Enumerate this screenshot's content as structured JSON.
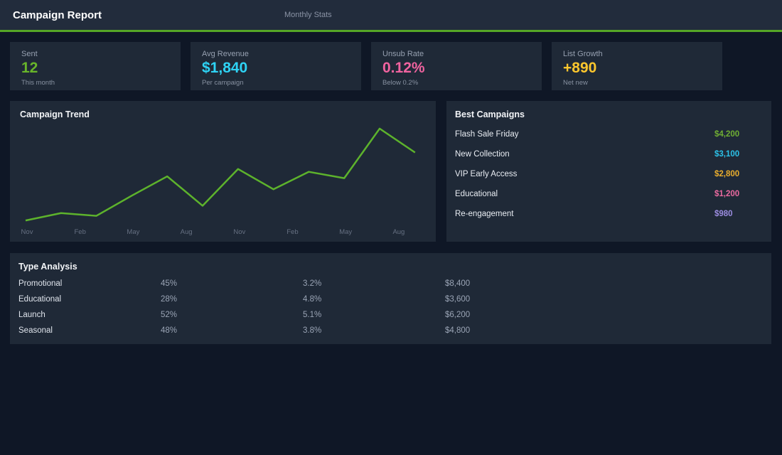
{
  "header": {
    "title": "Campaign Report",
    "subtitle": "Monthly Stats",
    "accent_color": "#55a626"
  },
  "cards": [
    {
      "label": "Sent",
      "value": "12",
      "sub": "This month",
      "color": "#68b52a"
    },
    {
      "label": "Avg Revenue",
      "value": "$1,840",
      "sub": "Per campaign",
      "color": "#2ed3f5"
    },
    {
      "label": "Unsub Rate",
      "value": "0.12%",
      "sub": "Below 0.2%",
      "color": "#f0639f"
    },
    {
      "label": "List Growth",
      "value": "+890",
      "sub": "Net new",
      "color": "#fcc62d"
    }
  ],
  "chart_data": {
    "type": "line",
    "title": "Campaign Trend",
    "x_tick_labels": [
      "Nov",
      "Feb",
      "May",
      "Aug",
      "Nov",
      "Feb",
      "May",
      "Aug"
    ],
    "series": [
      {
        "name": "Campaign Trend",
        "values": [
          0,
          8,
          5,
          27,
          48,
          16,
          56,
          34,
          53,
          46,
          100,
          74
        ]
      }
    ],
    "xlabel": "",
    "ylabel": "",
    "ylim": [
      0,
      100
    ],
    "grid": false,
    "legend": false,
    "line_color": "#5db32c"
  },
  "best_campaigns": {
    "title": "Best Campaigns",
    "items": [
      {
        "name": "Flash Sale Friday",
        "value": "$4,200",
        "color": "#6fae33"
      },
      {
        "name": "New Collection",
        "value": "$3,100",
        "color": "#2cc1e8"
      },
      {
        "name": "VIP Early Access",
        "value": "$2,800",
        "color": "#e9ad2d"
      },
      {
        "name": "Educational",
        "value": "$1,200",
        "color": "#e9699f"
      },
      {
        "name": "Re-engagement",
        "value": "$980",
        "color": "#9b8ce0"
      }
    ]
  },
  "type_analysis": {
    "title": "Type Analysis",
    "rows": [
      {
        "type": "Promotional",
        "percent": "45%",
        "rate": "3.2%",
        "revenue": "$8,400"
      },
      {
        "type": "Educational",
        "percent": "28%",
        "rate": "4.8%",
        "revenue": "$3,600"
      },
      {
        "type": "Launch",
        "percent": "52%",
        "rate": "5.1%",
        "revenue": "$6,200"
      },
      {
        "type": "Seasonal",
        "percent": "48%",
        "rate": "3.8%",
        "revenue": "$4,800"
      }
    ]
  }
}
